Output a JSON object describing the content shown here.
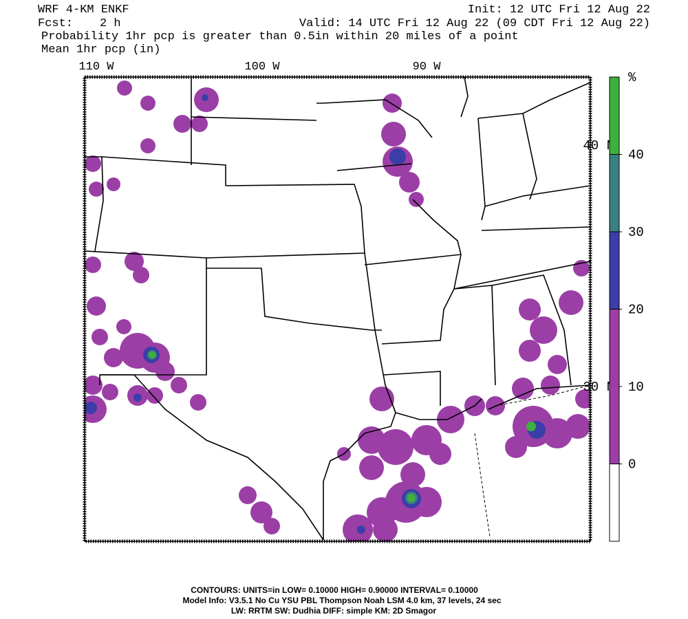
{
  "header": {
    "model": "WRF 4-KM ENKF",
    "init": "Init: 12 UTC Fri 12 Aug 22",
    "forecast_label": "Fcst:",
    "forecast_value": "2 h",
    "valid": "Valid: 14 UTC Fri 12 Aug 22 (09 CDT Fri 12 Aug 22)",
    "field_1": "Probability 1hr pcp is greater than 0.5in within 20 miles of a point",
    "field_2": "Mean 1hr pcp (in)"
  },
  "map": {
    "longitude_labels": [
      "110 W",
      "100 W",
      "90 W"
    ],
    "latitude_labels": [
      "40 N",
      "30 N"
    ]
  },
  "colorbar": {
    "unit_label": "%",
    "ylim": [
      -10,
      50
    ],
    "levels": [
      0,
      20,
      30,
      40
    ],
    "colors": [
      "#ffffff",
      "#9b3fa6",
      "#3b3ea8",
      "#3a8080",
      "#3fb03f"
    ],
    "yticks": [
      0,
      10,
      20,
      30,
      40
    ]
  },
  "footer": {
    "line_1": "CONTOURS:  UNITS=in  LOW= 0.10000     HIGH= 0.90000     INTERVAL= 0.10000",
    "line_2": "Model Info: V3.5.1    No Cu    YSU PBL   Thompson     Noah LSM   4.0 km,   37 levels,    24 sec",
    "line_3": "LW: RRTM  SW: Dudhia   DIFF: simple  KM: 2D Smagor"
  }
}
